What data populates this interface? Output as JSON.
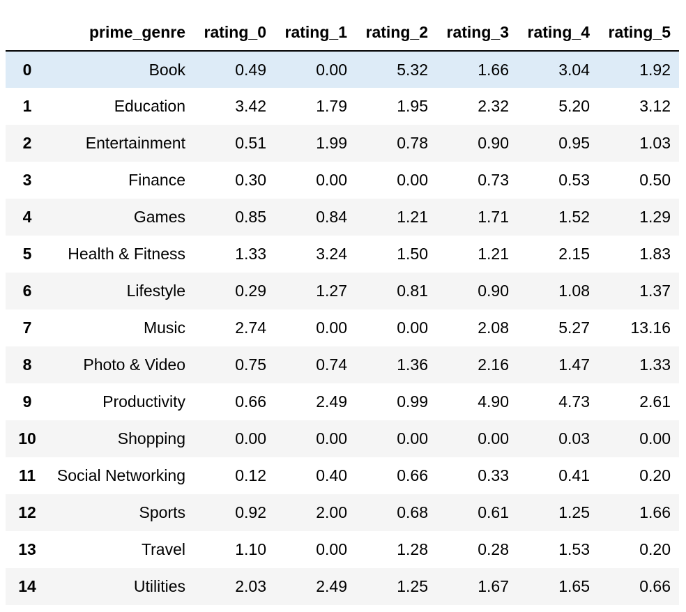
{
  "table": {
    "index_header": "",
    "columns": [
      "prime_genre",
      "rating_0",
      "rating_1",
      "rating_2",
      "rating_3",
      "rating_4",
      "rating_5"
    ],
    "highlighted_row": 0,
    "rows": [
      {
        "index": "0",
        "cells": [
          "Book",
          "0.49",
          "0.00",
          "5.32",
          "1.66",
          "3.04",
          "1.92"
        ]
      },
      {
        "index": "1",
        "cells": [
          "Education",
          "3.42",
          "1.79",
          "1.95",
          "2.32",
          "5.20",
          "3.12"
        ]
      },
      {
        "index": "2",
        "cells": [
          "Entertainment",
          "0.51",
          "1.99",
          "0.78",
          "0.90",
          "0.95",
          "1.03"
        ]
      },
      {
        "index": "3",
        "cells": [
          "Finance",
          "0.30",
          "0.00",
          "0.00",
          "0.73",
          "0.53",
          "0.50"
        ]
      },
      {
        "index": "4",
        "cells": [
          "Games",
          "0.85",
          "0.84",
          "1.21",
          "1.71",
          "1.52",
          "1.29"
        ]
      },
      {
        "index": "5",
        "cells": [
          "Health & Fitness",
          "1.33",
          "3.24",
          "1.50",
          "1.21",
          "2.15",
          "1.83"
        ]
      },
      {
        "index": "6",
        "cells": [
          "Lifestyle",
          "0.29",
          "1.27",
          "0.81",
          "0.90",
          "1.08",
          "1.37"
        ]
      },
      {
        "index": "7",
        "cells": [
          "Music",
          "2.74",
          "0.00",
          "0.00",
          "2.08",
          "5.27",
          "13.16"
        ]
      },
      {
        "index": "8",
        "cells": [
          "Photo & Video",
          "0.75",
          "0.74",
          "1.36",
          "2.16",
          "1.47",
          "1.33"
        ]
      },
      {
        "index": "9",
        "cells": [
          "Productivity",
          "0.66",
          "2.49",
          "0.99",
          "4.90",
          "4.73",
          "2.61"
        ]
      },
      {
        "index": "10",
        "cells": [
          "Shopping",
          "0.00",
          "0.00",
          "0.00",
          "0.00",
          "0.03",
          "0.00"
        ]
      },
      {
        "index": "11",
        "cells": [
          "Social Networking",
          "0.12",
          "0.40",
          "0.66",
          "0.33",
          "0.41",
          "0.20"
        ]
      },
      {
        "index": "12",
        "cells": [
          "Sports",
          "0.92",
          "2.00",
          "0.68",
          "0.61",
          "1.25",
          "1.66"
        ]
      },
      {
        "index": "13",
        "cells": [
          "Travel",
          "1.10",
          "0.00",
          "1.28",
          "0.28",
          "1.53",
          "0.20"
        ]
      },
      {
        "index": "14",
        "cells": [
          "Utilities",
          "2.03",
          "2.49",
          "1.25",
          "1.67",
          "1.65",
          "0.66"
        ]
      }
    ]
  },
  "colors": {
    "highlight": "#ddebf7",
    "stripe": "#f5f5f5",
    "background": "#ffffff",
    "text": "#000000"
  }
}
